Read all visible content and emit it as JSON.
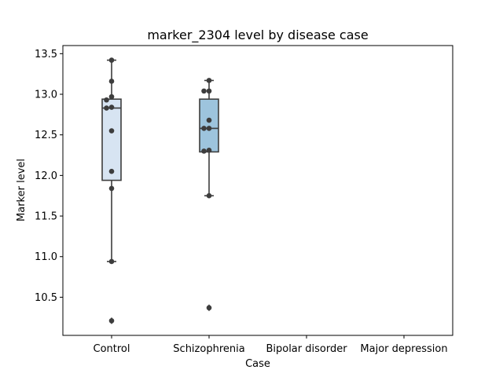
{
  "chart_data": {
    "type": "box",
    "title": "marker_2304 level by disease case",
    "xlabel": "Case",
    "ylabel": "Marker level",
    "categories": [
      "Control",
      "Schizophrenia",
      "Bipolar disorder",
      "Major depression"
    ],
    "ylim": [
      10.03,
      13.6
    ],
    "yticks": [
      10.5,
      11.0,
      11.5,
      12.0,
      12.5,
      13.0,
      13.5
    ],
    "ytick_labels": [
      "10.5",
      "11.0",
      "11.5",
      "12.0",
      "12.5",
      "13.0",
      "13.5"
    ],
    "grid": false,
    "boxes": [
      {
        "category": "Control",
        "q1": 11.94,
        "median": 12.83,
        "q3": 12.94,
        "whisker_low": 10.94,
        "whisker_high": 13.42,
        "outliers": [
          10.21
        ],
        "color": "#d7e4f2"
      },
      {
        "category": "Schizophrenia",
        "q1": 12.29,
        "median": 12.58,
        "q3": 12.94,
        "whisker_low": 11.75,
        "whisker_high": 13.17,
        "outliers": [
          10.37
        ],
        "color": "#9dc4dd"
      },
      {
        "category": "Bipolar disorder",
        "empty": true
      },
      {
        "category": "Major depression",
        "empty": true
      }
    ],
    "points": [
      {
        "category": "Control",
        "values": [
          13.42,
          13.16,
          12.97,
          12.93,
          12.84,
          12.83,
          12.55,
          12.05,
          11.84,
          10.94,
          10.21
        ]
      },
      {
        "category": "Schizophrenia",
        "values": [
          13.17,
          13.04,
          13.04,
          12.68,
          12.58,
          12.58,
          12.31,
          12.3,
          11.75,
          10.37
        ]
      }
    ],
    "colors": {
      "box_edge": "#3d3d3d",
      "point": "#3d3d3d",
      "frame": "#000000"
    }
  }
}
